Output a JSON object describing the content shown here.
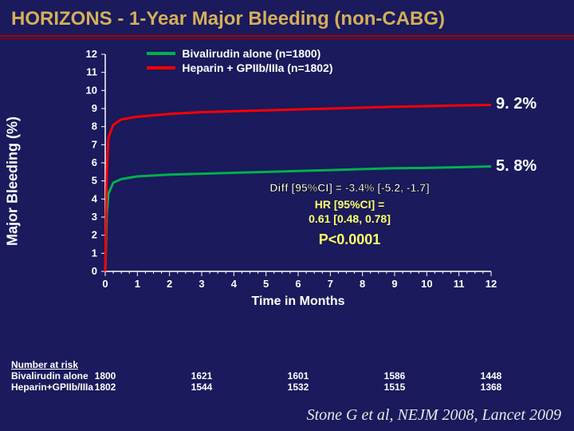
{
  "title": "HORIZONS - 1-Year Major Bleeding (non-CABG)",
  "chart": {
    "type": "line",
    "ylabel": "Major Bleeding (%)",
    "xlabel": "Time in Months",
    "xlim": [
      0,
      12
    ],
    "ylim": [
      0,
      12
    ],
    "xtick_step": 1,
    "ytick_step": 1,
    "axis_color": "#ffffff",
    "tick_fontsize": 13,
    "label_fontsize": 18,
    "series": [
      {
        "name": "Bivalirudin alone (n=1800)",
        "color": "#00b050",
        "line_width": 3,
        "points": [
          [
            0,
            0
          ],
          [
            0.05,
            3.2
          ],
          [
            0.1,
            4.3
          ],
          [
            0.25,
            4.9
          ],
          [
            0.5,
            5.1
          ],
          [
            1,
            5.25
          ],
          [
            2,
            5.35
          ],
          [
            3,
            5.4
          ],
          [
            4,
            5.45
          ],
          [
            5,
            5.5
          ],
          [
            6,
            5.55
          ],
          [
            7,
            5.6
          ],
          [
            8,
            5.65
          ],
          [
            9,
            5.7
          ],
          [
            10,
            5.72
          ],
          [
            11,
            5.76
          ],
          [
            12,
            5.8
          ]
        ],
        "end_label": "5. 8%",
        "end_label_color": "#ffffff",
        "end_label_fontsize": 20
      },
      {
        "name": "Heparin + GPIIb/IIIa (n=1802)",
        "color": "#ff0000",
        "line_width": 3,
        "points": [
          [
            0,
            0
          ],
          [
            0.05,
            5.6
          ],
          [
            0.1,
            7.4
          ],
          [
            0.25,
            8.1
          ],
          [
            0.5,
            8.4
          ],
          [
            1,
            8.55
          ],
          [
            2,
            8.7
          ],
          [
            3,
            8.8
          ],
          [
            4,
            8.85
          ],
          [
            5,
            8.9
          ],
          [
            6,
            8.95
          ],
          [
            7,
            9.0
          ],
          [
            8,
            9.05
          ],
          [
            9,
            9.1
          ],
          [
            10,
            9.13
          ],
          [
            11,
            9.17
          ],
          [
            12,
            9.2
          ]
        ],
        "end_label": "9. 2%",
        "end_label_color": "#ffffff",
        "end_label_fontsize": 20
      }
    ],
    "legend": {
      "x": 1.3,
      "y_top": 12.4
    },
    "stats": {
      "diff": "Diff [95%CI] = -3.4% [-5.2, -1.7]",
      "hr_line1": "HR [95%CI] =",
      "hr_line2": "0.61 [0.48, 0.78]",
      "pvalue": "P<0.0001",
      "hr_color": "#ffff66",
      "pvalue_color": "#ffff66"
    }
  },
  "number_at_risk": {
    "heading": "Number at risk",
    "timepoints": [
      0,
      3,
      6,
      9,
      12
    ],
    "rows": [
      {
        "label": "Bivalirudin alone",
        "values": [
          1800,
          1621,
          1601,
          1586,
          1448
        ]
      },
      {
        "label": "Heparin+GPIIb/IIIa",
        "values": [
          1802,
          1544,
          1532,
          1515,
          1368
        ]
      }
    ]
  },
  "citation": "Stone G et al, NEJM 2008, Lancet 2009",
  "colors": {
    "background": "#1a1a5c",
    "title": "#d4af5a",
    "rule": "#b00000"
  }
}
